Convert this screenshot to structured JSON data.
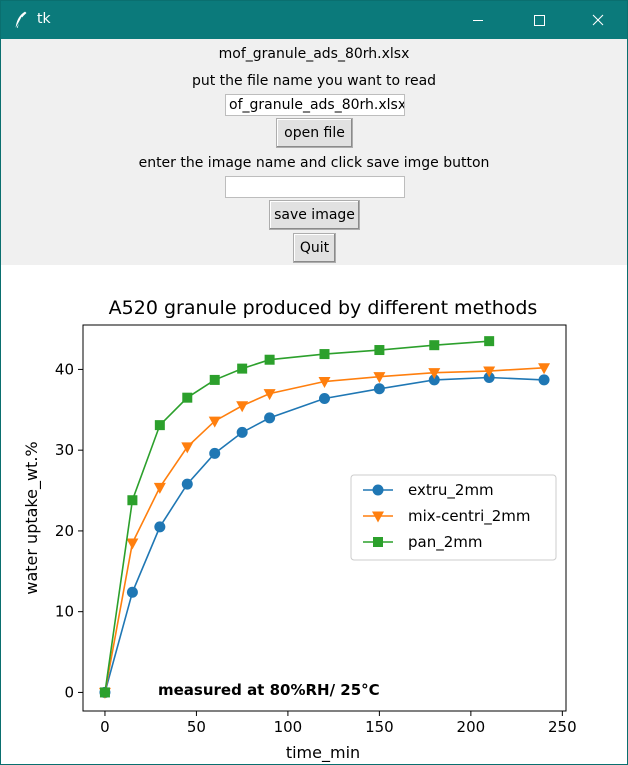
{
  "window": {
    "title": "tk"
  },
  "controls": {
    "file_label": "mof_granule_ads_80rh.xlsx",
    "prompt_label": "put the file name you want to read",
    "file_entry_value": "of_granule_ads_80rh.xlsx",
    "open_button": "open file",
    "image_prompt": "enter the image name and click save imge button",
    "image_entry_value": "",
    "save_button": "save image",
    "quit_button": "Quit"
  },
  "chart_data": {
    "type": "line",
    "title": "A520 granule produced by different methods",
    "xlabel": "time_min",
    "ylabel": "water uptake_wt.%",
    "annotation": "measured at 80%RH/ 25°C",
    "xlim": [
      -12,
      252
    ],
    "ylim": [
      -2.3,
      45.5
    ],
    "xticks": [
      0,
      50,
      100,
      150,
      200,
      250
    ],
    "yticks": [
      0,
      10,
      20,
      30,
      40
    ],
    "grid": false,
    "legend_position": "center-right",
    "series": [
      {
        "name": "extru_2mm",
        "color": "#1f77b4",
        "marker": "circle",
        "x": [
          0,
          15,
          30,
          45,
          60,
          75,
          90,
          120,
          150,
          180,
          210,
          240
        ],
        "y": [
          0,
          12.4,
          20.5,
          25.8,
          29.6,
          32.2,
          34.0,
          36.4,
          37.6,
          38.7,
          39.0,
          38.7
        ]
      },
      {
        "name": "mix-centri_2mm",
        "color": "#ff7f0e",
        "marker": "triangle-down",
        "x": [
          0,
          15,
          30,
          45,
          60,
          75,
          90,
          120,
          150,
          180,
          210,
          240
        ],
        "y": [
          0,
          18.5,
          25.4,
          30.4,
          33.6,
          35.5,
          37.0,
          38.5,
          39.1,
          39.6,
          39.8,
          40.2
        ]
      },
      {
        "name": "pan_2mm",
        "color": "#2ca02c",
        "marker": "square",
        "x": [
          0,
          15,
          30,
          45,
          60,
          75,
          90,
          120,
          150,
          180,
          210
        ],
        "y": [
          0,
          23.8,
          33.1,
          36.5,
          38.7,
          40.1,
          41.2,
          41.9,
          42.4,
          43.0,
          43.5
        ]
      }
    ]
  }
}
